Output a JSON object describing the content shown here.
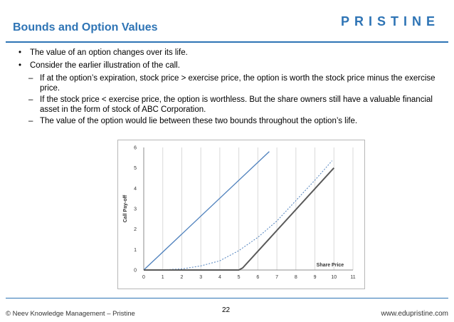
{
  "slide": {
    "title": "Bounds and Option Values",
    "brand": "PRISTINE"
  },
  "bullets": [
    "The value of an option changes over its life.",
    "Consider the earlier illustration of the call."
  ],
  "subbullets": [
    "If at the option’s expiration, stock price > exercise price, the option is worth the stock price minus the exercise price.",
    "If the stock price < exercise price, the option is worthless. But the share owners still have a valuable financial asset in the form of stock of ABC Corporation.",
    "The value of the option would lie between these two bounds throughout the option’s life."
  ],
  "footer": {
    "left": "© Neev Knowledge Management – Pristine",
    "page": "22",
    "right": "www.edupristine.com"
  },
  "colors": {
    "accent": "#2e74b5",
    "upper_bound": "#4f81bd",
    "option_value": "#4f81bd",
    "payoff": "#595959"
  },
  "chart_data": {
    "type": "line",
    "title": "",
    "xlabel": "Share Price",
    "ylabel": "Call Pay-off",
    "xlim": [
      0,
      11
    ],
    "ylim": [
      0,
      6
    ],
    "xticks": [
      "0",
      "1",
      "2",
      "3",
      "4",
      "5",
      "6",
      "7",
      "8",
      "9",
      "10",
      "11"
    ],
    "yticks": [
      "0",
      "1",
      "2",
      "3",
      "4",
      "5",
      "6"
    ],
    "grid": "vertical",
    "series": [
      {
        "style": "solid",
        "color": "#4f81bd",
        "x": [
          0,
          6.6
        ],
        "y": [
          0,
          5.8
        ]
      },
      {
        "style": "dashed",
        "color": "#4f81bd",
        "x": [
          0,
          1,
          2,
          3,
          4,
          5,
          6,
          7,
          8,
          9,
          9.9
        ],
        "y": [
          0,
          0.01,
          0.05,
          0.2,
          0.45,
          0.95,
          1.6,
          2.4,
          3.4,
          4.4,
          5.35
        ]
      },
      {
        "style": "solid",
        "color": "#595959",
        "x": [
          0,
          5,
          5.2,
          10
        ],
        "y": [
          0,
          0,
          0.1,
          5
        ]
      }
    ]
  }
}
